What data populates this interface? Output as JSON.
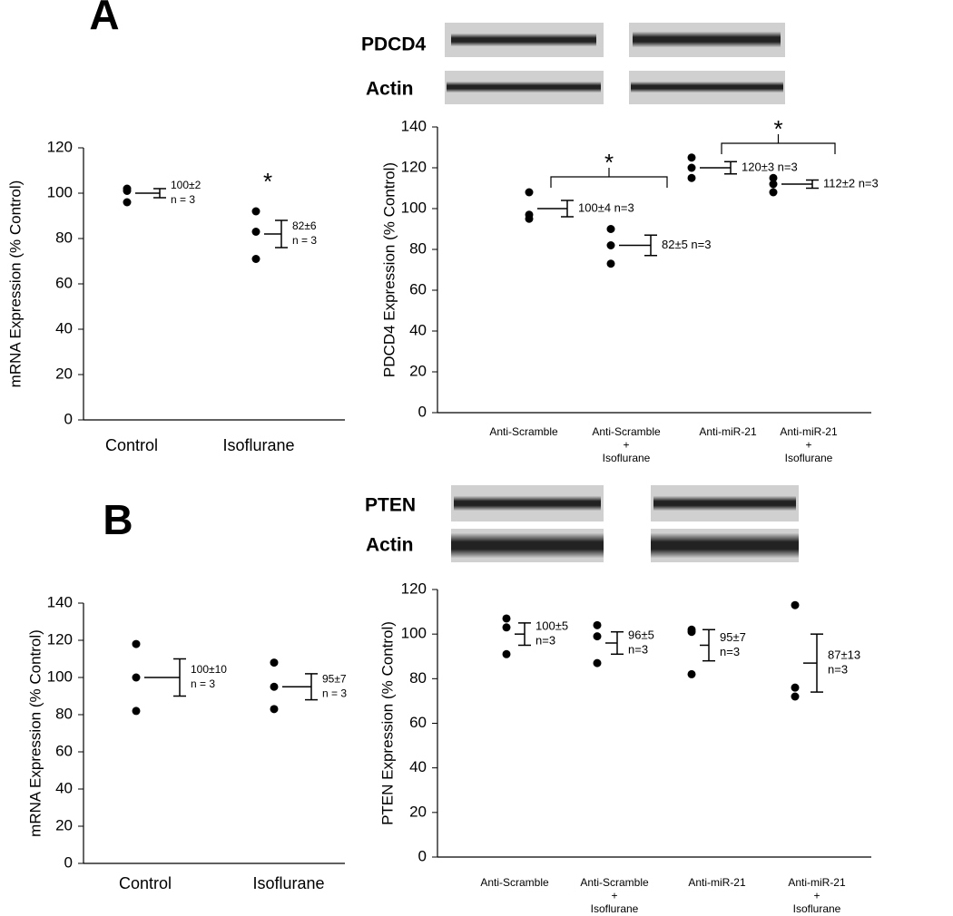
{
  "chart_data": [
    {
      "type": "dotplot",
      "panel": "A",
      "y_label": "mRNA Expression (% Control)",
      "categories": [
        "Control",
        "Isoflurane"
      ],
      "points": [
        [
          102,
          101,
          96
        ],
        [
          92,
          83,
          71
        ]
      ],
      "means": [
        100,
        82
      ],
      "errors": [
        2,
        6
      ],
      "annotations": [
        [
          "100±2",
          "n = 3"
        ],
        [
          "82±6",
          "n = 3"
        ]
      ],
      "markers": [
        null,
        "*"
      ],
      "ylim": [
        0,
        120
      ],
      "yticks": [
        0,
        20,
        40,
        60,
        80,
        100,
        120
      ],
      "color": "#000000"
    },
    {
      "type": "dotplot",
      "blot_labels": [
        "PDCD4",
        "Actin"
      ],
      "y_label": "PDCD4 Expression (% Control)",
      "categories": [
        "Anti-Scramble",
        "Anti-Scramble\n+\nIsoflurane",
        "Anti-miR-21",
        "Anti-miR-21\n+\nIsoflurane"
      ],
      "points": [
        [
          108,
          97,
          95
        ],
        [
          90,
          82,
          73
        ],
        [
          125,
          120,
          115
        ],
        [
          115,
          112,
          108
        ]
      ],
      "means": [
        100,
        82,
        120,
        112
      ],
      "errors": [
        4,
        5,
        3,
        2
      ],
      "annotations": [
        [
          "100±4 n=3"
        ],
        [
          "82±5 n=3"
        ],
        [
          "120±3 n=3"
        ],
        [
          "112±2 n=3"
        ]
      ],
      "pair_markers": [
        "*",
        "*"
      ],
      "ylim": [
        0,
        140
      ],
      "yticks": [
        0,
        20,
        40,
        60,
        80,
        100,
        120,
        140
      ],
      "color": "#000000"
    },
    {
      "type": "dotplot",
      "panel": "B",
      "y_label": "mRNA Expression (% Control)",
      "categories": [
        "Control",
        "Isoflurane"
      ],
      "points": [
        [
          118,
          100,
          82
        ],
        [
          108,
          95,
          83
        ]
      ],
      "means": [
        100,
        95
      ],
      "errors": [
        10,
        7
      ],
      "annotations": [
        [
          "100±10",
          "n = 3"
        ],
        [
          "95±7",
          "n = 3"
        ]
      ],
      "ylim": [
        0,
        140
      ],
      "yticks": [
        0,
        20,
        40,
        60,
        80,
        100,
        120,
        140
      ],
      "color": "#000000"
    },
    {
      "type": "dotplot",
      "blot_labels": [
        "PTEN",
        "Actin"
      ],
      "y_label": "PTEN Expression (% Control)",
      "categories": [
        "Anti-Scramble",
        "Anti-Scramble\n+\nIsoflurane",
        "Anti-miR-21",
        "Anti-miR-21\n+\nIsoflurane"
      ],
      "points": [
        [
          107,
          103,
          91
        ],
        [
          104,
          99,
          87
        ],
        [
          102,
          101,
          82
        ],
        [
          113,
          76,
          72
        ]
      ],
      "means": [
        100,
        96,
        95,
        87
      ],
      "errors": [
        5,
        5,
        7,
        13
      ],
      "annotations": [
        [
          "100±5",
          "n=3"
        ],
        [
          "96±5",
          "n=3"
        ],
        [
          "95±7",
          "n=3"
        ],
        [
          "87±13",
          "n=3"
        ]
      ],
      "ylim": [
        0,
        120
      ],
      "yticks": [
        0,
        20,
        40,
        60,
        80,
        100,
        120
      ],
      "color": "#000000"
    }
  ]
}
